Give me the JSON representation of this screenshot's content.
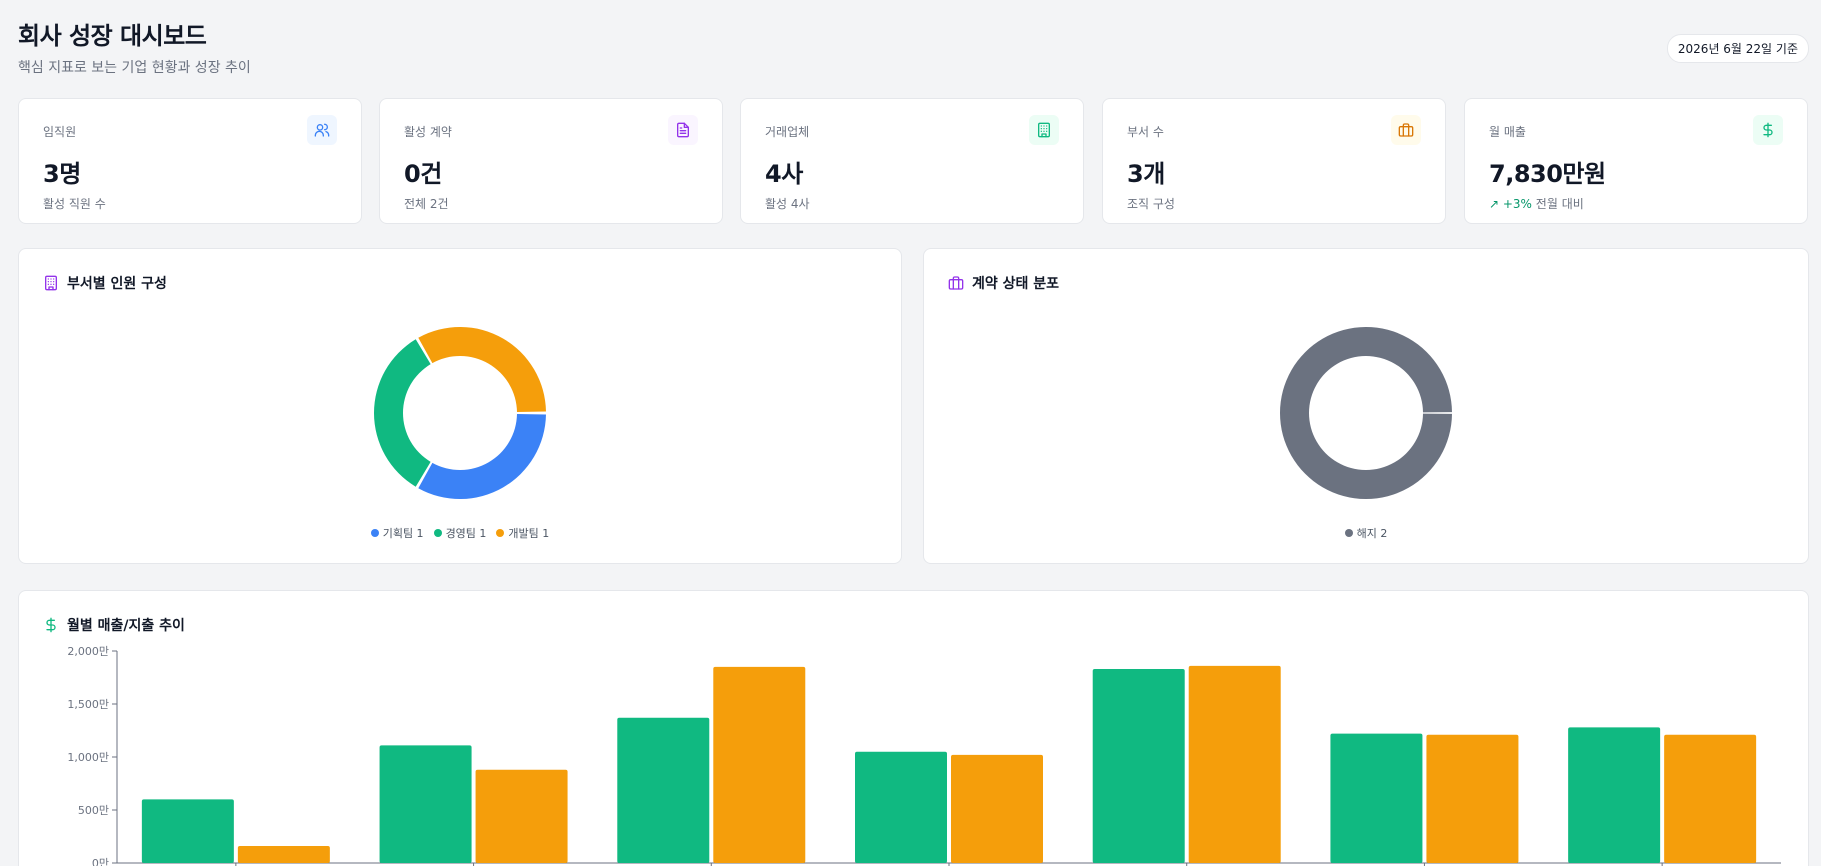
{
  "header": {
    "title": "회사 성장 대시보드",
    "subtitle": "핵심 지표로 보는 기업 현황과 성장 추이",
    "date": "2026년 6월 22일 기준"
  },
  "stats": [
    {
      "label": "임직원",
      "value": "3명",
      "sub": "활성 직원 수",
      "icon": "users-icon",
      "color": "#3b82f6",
      "bg": "#eff6ff"
    },
    {
      "label": "활성 계약",
      "value": "0건",
      "sub": "전체 2건",
      "icon": "document-icon",
      "color": "#9333ea",
      "bg": "#faf5ff"
    },
    {
      "label": "거래업체",
      "value": "4사",
      "sub": "활성 4사",
      "icon": "building-icon",
      "color": "#10b981",
      "bg": "#ecfdf5"
    },
    {
      "label": "부서 수",
      "value": "3개",
      "sub": "조직 구성",
      "icon": "briefcase-icon",
      "color": "#d97706",
      "bg": "#fffbeb"
    },
    {
      "label": "월 매출",
      "value": "7,830만원",
      "sub_up": "↗ +3%",
      "sub": "전월 대비",
      "icon": "dollar-icon",
      "color": "#10b981",
      "bg": "#ecfdf5"
    }
  ],
  "panels": {
    "departments": {
      "title": "부서별 인원 구성"
    },
    "contracts": {
      "title": "계약 상태 분포"
    },
    "revenue": {
      "title": "월별 매출/지출 추이"
    }
  },
  "colors": {
    "blue": "#3b82f6",
    "green": "#10b981",
    "orange": "#f59e0b",
    "gray": "#6b7280",
    "purple": "#9333ea"
  },
  "chart_data": [
    {
      "type": "pie",
      "categories": [
        "기획팀",
        "경영팀",
        "개발팀"
      ],
      "values": [
        1,
        1,
        1
      ],
      "legend_labels": [
        "기획팀 1",
        "경영팀 1",
        "개발팀 1"
      ],
      "colors": [
        "#3b82f6",
        "#10b981",
        "#f59e0b"
      ]
    },
    {
      "type": "pie",
      "categories": [
        "해지"
      ],
      "values": [
        2
      ],
      "legend_labels": [
        "해지 2"
      ],
      "colors": [
        "#6b7280"
      ]
    },
    {
      "type": "bar",
      "yticks": [
        "0만",
        "500만",
        "1,000만",
        "1,500만",
        "2,000만"
      ],
      "ylim": [
        0,
        2000
      ],
      "series": [
        {
          "values": [
            600,
            1110,
            1370,
            1050,
            1830,
            1220,
            1280
          ],
          "color": "#10b981"
        },
        {
          "values": [
            160,
            880,
            1850,
            1020,
            1860,
            1210,
            1210
          ],
          "color": "#f59e0b"
        }
      ]
    }
  ]
}
